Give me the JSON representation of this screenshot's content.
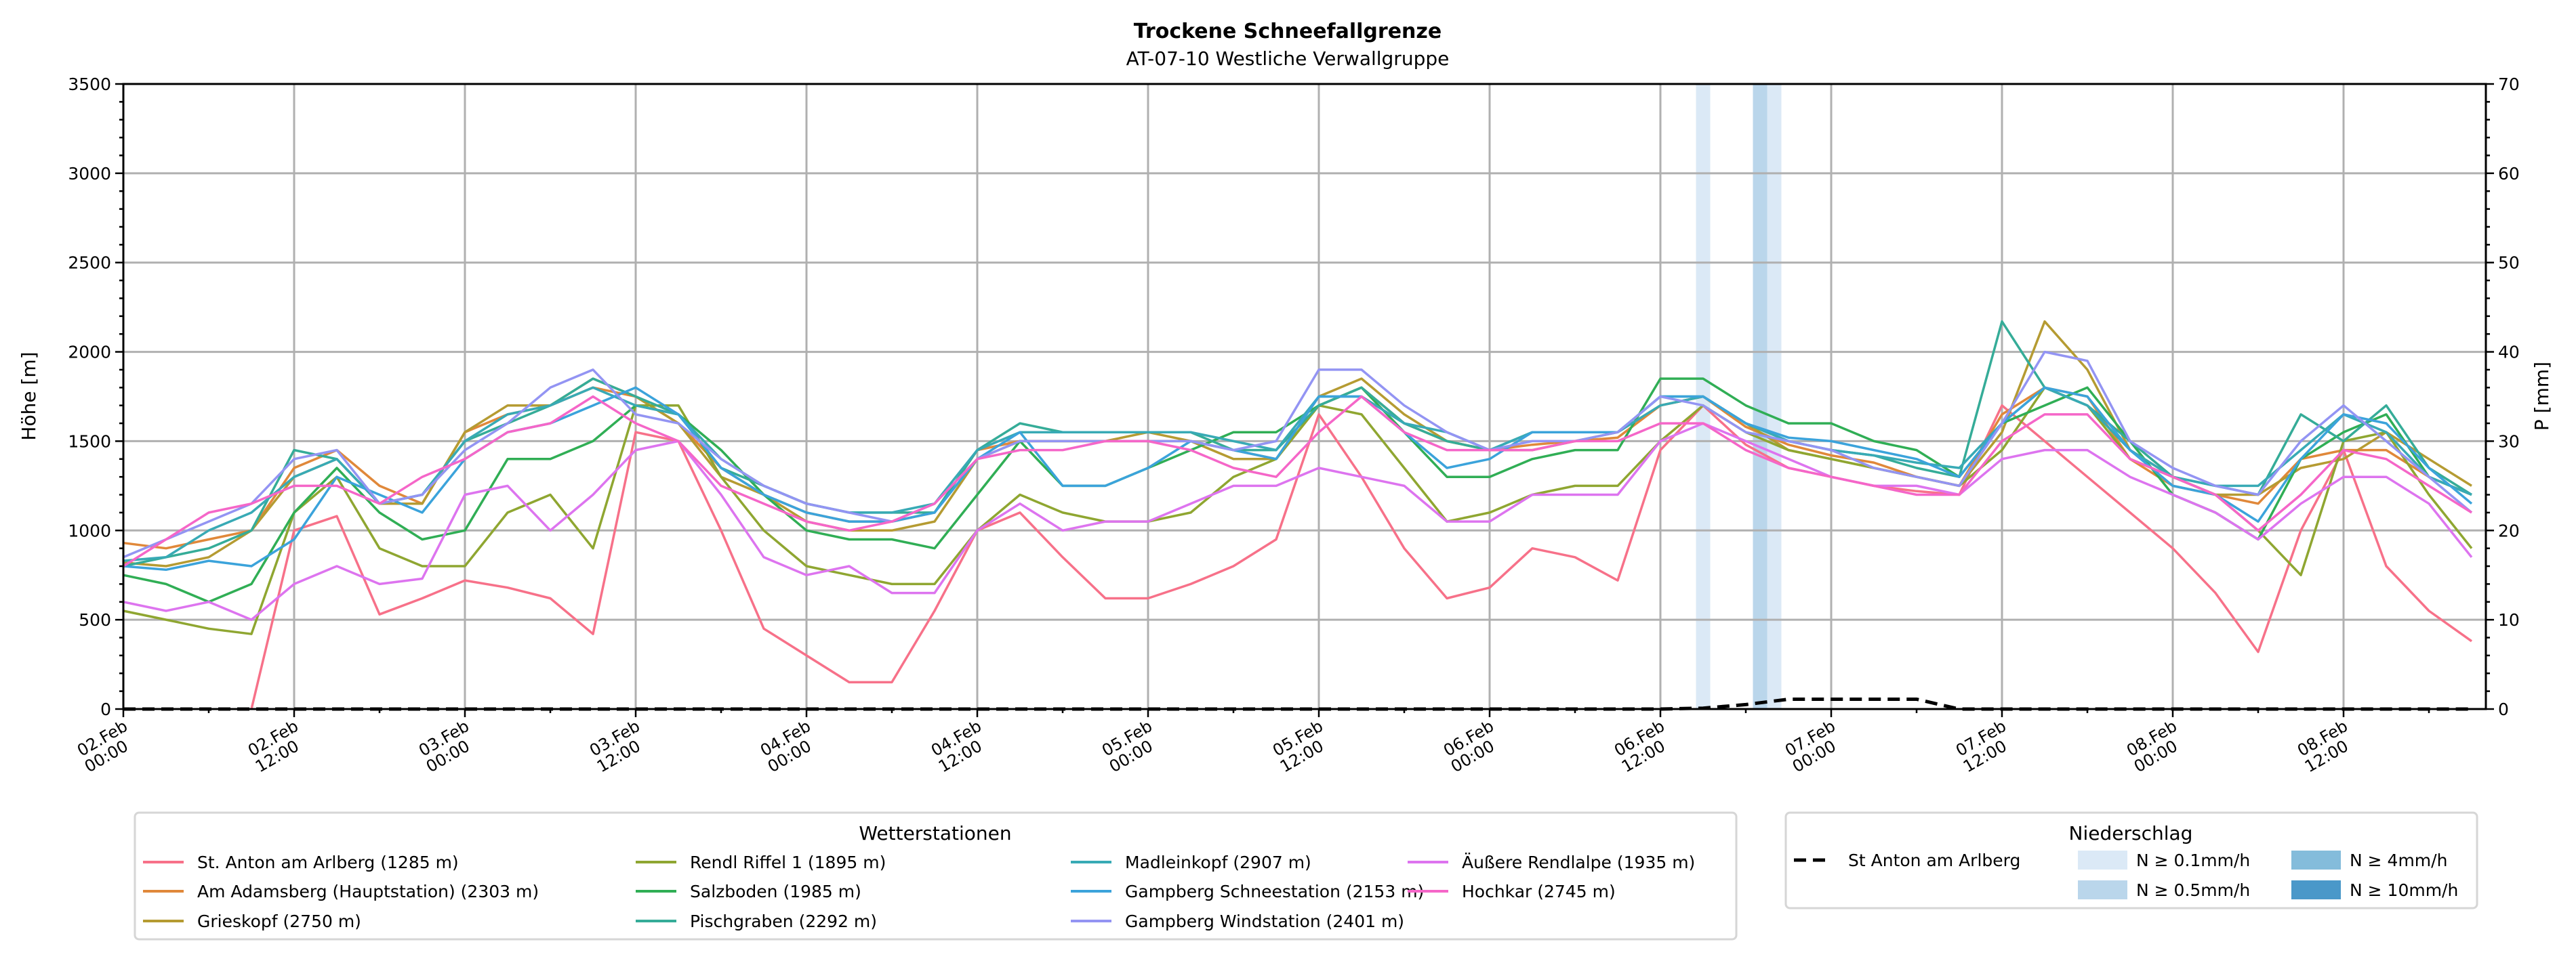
{
  "chart_data": {
    "type": "line",
    "title": "Trockene Schneefallgrenze",
    "subtitle": "AT-07-10 Westliche Verwallgruppe",
    "ylabel": "Höhe [m]",
    "ylabel_right": "P [mm]",
    "ylim": [
      0,
      3500
    ],
    "ylim_right": [
      0,
      70
    ],
    "yticks": [
      0,
      500,
      1000,
      1500,
      2000,
      2500,
      3000,
      3500
    ],
    "yticks_right": [
      0,
      10,
      20,
      30,
      40,
      50,
      60,
      70
    ],
    "grid": true,
    "x_unit": "hours since 02.Feb 00:00",
    "xlim": [
      0,
      166
    ],
    "x_step_hours": 3,
    "xticks": [
      {
        "hour": 0,
        "date": "02.Feb",
        "time": "00:00"
      },
      {
        "hour": 12,
        "date": "02.Feb",
        "time": "12:00"
      },
      {
        "hour": 24,
        "date": "03.Feb",
        "time": "00:00"
      },
      {
        "hour": 36,
        "date": "03.Feb",
        "time": "12:00"
      },
      {
        "hour": 48,
        "date": "04.Feb",
        "time": "00:00"
      },
      {
        "hour": 60,
        "date": "04.Feb",
        "time": "12:00"
      },
      {
        "hour": 72,
        "date": "05.Feb",
        "time": "00:00"
      },
      {
        "hour": 84,
        "date": "05.Feb",
        "time": "12:00"
      },
      {
        "hour": 96,
        "date": "06.Feb",
        "time": "00:00"
      },
      {
        "hour": 108,
        "date": "06.Feb",
        "time": "12:00"
      },
      {
        "hour": 120,
        "date": "07.Feb",
        "time": "00:00"
      },
      {
        "hour": 132,
        "date": "07.Feb",
        "time": "12:00"
      },
      {
        "hour": 144,
        "date": "08.Feb",
        "time": "00:00"
      },
      {
        "hour": 156,
        "date": "08.Feb",
        "time": "12:00"
      }
    ],
    "legend_title": "Wetterstationen",
    "legend_placement": "bottom-center",
    "series": [
      {
        "name": "St. Anton am Arlberg (1285 m)",
        "color": "#f77189",
        "values": [
          null,
          null,
          null,
          0,
          1000,
          1080,
          530,
          620,
          720,
          680,
          620,
          420,
          1550,
          1500,
          1000,
          450,
          300,
          150,
          150,
          550,
          1000,
          1100,
          850,
          620,
          620,
          700,
          800,
          950,
          1650,
          1300,
          900,
          620,
          680,
          900,
          850,
          720,
          1450,
          1700,
          1480,
          1350,
          1300,
          1250,
          1220,
          1200,
          1700,
          1500,
          1300,
          1100,
          900,
          650,
          320,
          1000,
          1450,
          800,
          550,
          380
        ]
      },
      {
        "name": "Am Adamsberg (Hauptstation) (2303 m)",
        "color": "#e0883a",
        "values": [
          930,
          900,
          950,
          1000,
          1350,
          1450,
          1250,
          1150,
          1550,
          1650,
          1700,
          1800,
          1750,
          1600,
          1350,
          1200,
          1100,
          1050,
          1050,
          1100,
          1450,
          1500,
          1500,
          1500,
          1500,
          1500,
          1450,
          1400,
          1700,
          1800,
          1600,
          1500,
          1450,
          1480,
          1500,
          1520,
          1700,
          1750,
          1580,
          1480,
          1420,
          1380,
          1300,
          1250,
          1650,
          1800,
          1750,
          1400,
          1250,
          1200,
          1150,
          1400,
          1450,
          1450,
          1300,
          1200
        ]
      },
      {
        "name": "Grieskopf (2750 m)",
        "color": "#b59b32",
        "values": [
          820,
          800,
          850,
          1000,
          1300,
          1400,
          1150,
          1150,
          1550,
          1700,
          1700,
          1850,
          1750,
          1600,
          1300,
          1200,
          1050,
          1000,
          1000,
          1050,
          1400,
          1500,
          1500,
          1500,
          1550,
          1500,
          1400,
          1400,
          1750,
          1850,
          1650,
          1500,
          1450,
          1450,
          1500,
          1550,
          1700,
          1750,
          1600,
          1450,
          1400,
          1350,
          1300,
          1250,
          1550,
          2170,
          1900,
          1450,
          1300,
          1200,
          1200,
          1350,
          1400,
          1550,
          1400,
          1250
        ]
      },
      {
        "name": "Rendl Riffel 1 (1895 m)",
        "color": "#8fa631",
        "values": [
          550,
          500,
          450,
          420,
          1100,
          1300,
          900,
          800,
          800,
          1100,
          1200,
          900,
          1700,
          1700,
          1300,
          1000,
          800,
          750,
          700,
          700,
          1000,
          1200,
          1100,
          1050,
          1050,
          1100,
          1300,
          1400,
          1700,
          1650,
          1350,
          1050,
          1100,
          1200,
          1250,
          1250,
          1500,
          1700,
          1550,
          1450,
          1400,
          1350,
          1300,
          1250,
          1450,
          1800,
          1700,
          1400,
          1300,
          1200,
          1000,
          750,
          1500,
          1550,
          1200,
          900
        ]
      },
      {
        "name": "Salzboden (1985 m)",
        "color": "#30ae55",
        "values": [
          750,
          700,
          600,
          700,
          1100,
          1350,
          1100,
          950,
          1000,
          1400,
          1400,
          1500,
          1700,
          1650,
          1450,
          1200,
          1000,
          950,
          950,
          900,
          1200,
          1500,
          1250,
          1250,
          1350,
          1450,
          1550,
          1550,
          1700,
          1800,
          1550,
          1300,
          1300,
          1400,
          1450,
          1450,
          1850,
          1850,
          1700,
          1600,
          1600,
          1500,
          1450,
          1300,
          1600,
          1700,
          1800,
          1500,
          1200,
          1100,
          950,
          1400,
          1550,
          1650,
          1300,
          1200
        ]
      },
      {
        "name": "Pischgraben (2292 m)",
        "color": "#35ac98",
        "values": [
          800,
          850,
          900,
          1000,
          1450,
          1400,
          1150,
          1200,
          1500,
          1600,
          1700,
          1850,
          1750,
          1650,
          1350,
          1250,
          1150,
          1100,
          1100,
          1100,
          1450,
          1600,
          1550,
          1550,
          1550,
          1550,
          1450,
          1450,
          1700,
          1800,
          1600,
          1500,
          1450,
          1550,
          1550,
          1550,
          1750,
          1750,
          1600,
          1500,
          1450,
          1420,
          1350,
          1300,
          2170,
          1800,
          1700,
          1500,
          1300,
          1250,
          1200,
          1650,
          1500,
          1700,
          1350,
          1200
        ]
      },
      {
        "name": "Madleinkopf (2907 m)",
        "color": "#38aab5",
        "values": [
          830,
          850,
          1000,
          1100,
          1300,
          1400,
          1150,
          1200,
          1500,
          1650,
          1700,
          1800,
          1700,
          1650,
          1400,
          1250,
          1150,
          1100,
          1100,
          1150,
          1450,
          1550,
          1550,
          1550,
          1550,
          1550,
          1500,
          1450,
          1750,
          1750,
          1600,
          1550,
          1450,
          1550,
          1550,
          1550,
          1700,
          1750,
          1600,
          1500,
          1450,
          1420,
          1380,
          1350,
          1600,
          1800,
          1700,
          1450,
          1300,
          1250,
          1250,
          1450,
          1650,
          1550,
          1300,
          1200
        ]
      },
      {
        "name": "Gampberg Schneestation (2153 m)",
        "color": "#3ba3db",
        "values": [
          800,
          780,
          830,
          800,
          950,
          1300,
          1200,
          1100,
          1400,
          1550,
          1600,
          1700,
          1800,
          1650,
          1350,
          1200,
          1100,
          1050,
          1050,
          1100,
          1400,
          1550,
          1250,
          1250,
          1350,
          1500,
          1450,
          1400,
          1750,
          1750,
          1550,
          1350,
          1400,
          1550,
          1550,
          1550,
          1750,
          1750,
          1600,
          1520,
          1500,
          1450,
          1400,
          1300,
          1600,
          1800,
          1750,
          1450,
          1250,
          1200,
          1050,
          1400,
          1650,
          1600,
          1350,
          1150
        ]
      },
      {
        "name": "Gampberg Windstation (2401 m)",
        "color": "#9394f3",
        "values": [
          850,
          950,
          1050,
          1150,
          1400,
          1450,
          1150,
          1200,
          1450,
          1600,
          1800,
          1900,
          1650,
          1600,
          1400,
          1250,
          1150,
          1100,
          1050,
          1150,
          1400,
          1500,
          1500,
          1500,
          1500,
          1500,
          1450,
          1500,
          1900,
          1900,
          1700,
          1550,
          1450,
          1500,
          1500,
          1550,
          1750,
          1700,
          1550,
          1500,
          1450,
          1350,
          1300,
          1250,
          1600,
          2000,
          1950,
          1500,
          1350,
          1250,
          1200,
          1500,
          1700,
          1500,
          1300,
          1100
        ]
      },
      {
        "name": "Äußere Rendlalpe (1935 m)",
        "color": "#dd74ef",
        "values": [
          600,
          550,
          600,
          500,
          700,
          800,
          700,
          730,
          1200,
          1250,
          1000,
          1200,
          1450,
          1500,
          1200,
          850,
          750,
          800,
          650,
          650,
          1000,
          1150,
          1000,
          1050,
          1050,
          1150,
          1250,
          1250,
          1350,
          1300,
          1250,
          1050,
          1050,
          1200,
          1200,
          1200,
          1500,
          1600,
          1500,
          1400,
          1300,
          1250,
          1250,
          1200,
          1400,
          1450,
          1450,
          1300,
          1200,
          1100,
          950,
          1150,
          1300,
          1300,
          1150,
          850
        ]
      },
      {
        "name": "Hochkar (2745 m)",
        "color": "#f566c8",
        "values": [
          800,
          950,
          1100,
          1150,
          1250,
          1250,
          1150,
          1300,
          1400,
          1550,
          1600,
          1750,
          1600,
          1500,
          1250,
          1150,
          1050,
          1000,
          1050,
          1150,
          1400,
          1450,
          1450,
          1500,
          1500,
          1450,
          1350,
          1300,
          1550,
          1750,
          1550,
          1450,
          1450,
          1450,
          1500,
          1500,
          1600,
          1600,
          1450,
          1350,
          1300,
          1250,
          1200,
          1200,
          1500,
          1650,
          1650,
          1400,
          1300,
          1200,
          1000,
          1200,
          1450,
          1400,
          1250,
          1100
        ]
      }
    ],
    "precipitation": {
      "legend_title": "Niederschlag",
      "station": "St Anton am Arlberg",
      "color": "#000000",
      "values_mm": [
        0,
        0,
        0,
        0,
        0,
        0,
        0,
        0,
        0,
        0,
        0,
        0,
        0,
        0,
        0,
        0,
        0,
        0,
        0,
        0,
        0,
        0,
        0,
        0,
        0,
        0,
        0,
        0,
        0,
        0,
        0,
        0,
        0,
        0,
        0,
        0,
        0,
        0.1,
        0.5,
        1.1,
        1.1,
        1.1,
        1.1,
        0,
        0,
        0,
        0,
        0,
        0,
        0,
        0,
        0,
        0,
        0,
        0,
        0
      ],
      "categories": [
        {
          "label": "N ≥ 0.1mm/h",
          "threshold": 0.1,
          "color": "#dbe9f6"
        },
        {
          "label": "N ≥ 0.5mm/h",
          "threshold": 0.5,
          "color": "#bad6eb"
        },
        {
          "label": "N ≥ 4mm/h",
          "threshold": 4,
          "color": "#84bcdb"
        },
        {
          "label": "N ≥ 10mm/h",
          "threshold": 10,
          "color": "#4a98c9"
        }
      ],
      "bands": [
        {
          "hour": 111,
          "threshold": 0.1
        },
        {
          "hour": 115,
          "threshold": 0.5
        },
        {
          "hour": 116,
          "threshold": 0.1
        }
      ]
    }
  }
}
